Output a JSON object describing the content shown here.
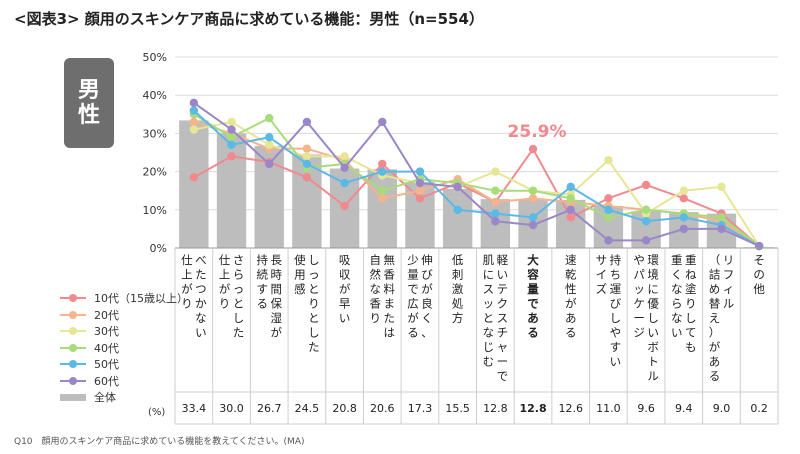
{
  "title": "<図表3> 顔用のスキンケア商品に求めている機能：男性（n=554）",
  "badge": [
    "男",
    "性"
  ],
  "footnote": "Q10　顔用のスキンケア商品に求めている機能を教えてください。(MA)",
  "percent_unit": "(%)",
  "highlight_label": "25.9%",
  "colors": {
    "10代": "#f08a8e",
    "20代": "#f5b48c",
    "30代": "#e6e696",
    "40代": "#a8dc7a",
    "50代": "#5ab9e6",
    "60代": "#9b87c8",
    "bar": "#bdbdbd",
    "highlight": "#f08a8e",
    "grid": "#dcdcdc"
  },
  "chart_data": {
    "type": "bar",
    "title": "顔用のスキンケア商品に求めている機能：男性（n=554）",
    "ylim": [
      0,
      50
    ],
    "yticks": [
      "0%",
      "10%",
      "20%",
      "30%",
      "40%",
      "50%"
    ],
    "categories": [
      "べたつかない仕上がり",
      "さらっとした仕上がり",
      "長時間保湿が持続する",
      "しっとりとした使用感",
      "吸収が早い",
      "無香料または自然な香り",
      "伸びが良く、少量で広がる",
      "低刺激処方",
      "軽いテクスチャーで肌にスッとなじむ",
      "大容量である",
      "速乾性がある",
      "持ち運びしやすいサイズ",
      "環境に優しいボトルやパッケージ",
      "重ね塗りしても重くならない",
      "リフィル（詰め替え）がある",
      "その他"
    ],
    "category_columns": [
      [
        "べ",
        "た",
        "つ",
        "か",
        "な",
        "い"
      ],
      [
        "さ",
        "ら",
        "っ",
        "と",
        "し",
        "た"
      ],
      [
        "長",
        "時",
        "間",
        "保",
        "湿",
        "が"
      ],
      [
        "し",
        "っ",
        "と",
        "り",
        "と",
        "し",
        "た"
      ],
      [
        "吸",
        "収",
        "が",
        "早",
        "い"
      ],
      [
        "無",
        "香",
        "料",
        "ま",
        "た",
        "は"
      ],
      [
        "伸",
        "び",
        "が",
        "良",
        "く",
        "、"
      ],
      [
        "低",
        "刺",
        "激",
        "処",
        "方"
      ],
      [
        "軽",
        "い",
        "テ",
        "ク",
        "ス",
        "チ",
        "ャ",
        "ー",
        "で"
      ],
      [
        "大",
        "容",
        "量",
        "で",
        "あ",
        "る"
      ],
      [
        "速",
        "乾",
        "性",
        "が",
        "あ",
        "る"
      ],
      [
        "持",
        "ち",
        "運",
        "び",
        "し",
        "や",
        "す",
        "い"
      ],
      [
        "環",
        "境",
        "に",
        "優",
        "し",
        "い",
        "ボ",
        "ト",
        "ル"
      ],
      [
        "重",
        "ね",
        "塗",
        "り",
        "し",
        "て",
        "も"
      ],
      [
        "リ",
        "フ",
        "ィ",
        "ル"
      ],
      [
        "そ",
        "の",
        "他"
      ]
    ],
    "category_columns2": [
      [
        "仕",
        "上",
        "が",
        "り"
      ],
      [
        "仕",
        "上",
        "が",
        "り"
      ],
      [
        "持",
        "続",
        "す",
        "る"
      ],
      [
        "使",
        "用",
        "感"
      ],
      [],
      [
        "自",
        "然",
        "な",
        "香",
        "り"
      ],
      [
        "少",
        "量",
        "で",
        "広",
        "が",
        "る"
      ],
      [],
      [
        "肌",
        "に",
        "ス",
        "ッ",
        "と",
        "な",
        "じ",
        "む"
      ],
      [],
      [],
      [
        "サ",
        "イ",
        "ズ"
      ],
      [
        "や",
        "パ",
        "ッ",
        "ケ",
        "ー",
        "ジ"
      ],
      [
        "重",
        "く",
        "な",
        "ら",
        "な",
        "い"
      ],
      [
        "（",
        "詰",
        "め",
        "替",
        "え",
        "）",
        "が",
        "あ",
        "る"
      ],
      []
    ],
    "bold_category_index": 9,
    "overall_label": "全体",
    "overall": [
      33.4,
      30.0,
      26.7,
      24.5,
      20.8,
      20.6,
      17.3,
      15.5,
      12.8,
      12.8,
      12.6,
      11.0,
      9.6,
      9.4,
      9.0,
      0.2
    ],
    "overall_text": [
      "33.4",
      "30.0",
      "26.7",
      "24.5",
      "20.8",
      "20.6",
      "17.3",
      "15.5",
      "12.8",
      "12.8",
      "12.6",
      "11.0",
      "9.6",
      "9.4",
      "9.0",
      "0.2"
    ],
    "series": [
      {
        "name": "10代（15歳以上）",
        "key": "10代",
        "values": [
          18.5,
          24,
          22.5,
          18.5,
          11,
          22,
          13,
          17,
          12,
          25.9,
          8,
          13,
          16.5,
          13,
          9,
          0.5
        ]
      },
      {
        "name": "20代",
        "key": "20代",
        "values": [
          33,
          30,
          26,
          26,
          23,
          13,
          15,
          18,
          12,
          13,
          12,
          11,
          10,
          9,
          7,
          0.5
        ]
      },
      {
        "name": "30代",
        "key": "30代",
        "values": [
          31,
          33,
          27,
          24,
          24,
          19,
          17,
          16,
          20,
          15,
          14,
          23,
          9,
          15,
          16,
          0.5
        ]
      },
      {
        "name": "40代",
        "key": "40代",
        "values": [
          35,
          29,
          34,
          21,
          22,
          15,
          18,
          17,
          15,
          15,
          13,
          8,
          10,
          9,
          8,
          0.5
        ]
      },
      {
        "name": "50代",
        "key": "50代",
        "values": [
          36,
          27,
          29,
          22,
          17,
          20,
          20,
          10,
          9,
          8,
          16,
          10,
          7,
          8,
          6,
          0.5
        ]
      },
      {
        "name": "60代",
        "key": "60代",
        "values": [
          38,
          31,
          22,
          33,
          21,
          33,
          17,
          16,
          7,
          6,
          10,
          2,
          2,
          5,
          5,
          0.5
        ]
      }
    ]
  }
}
